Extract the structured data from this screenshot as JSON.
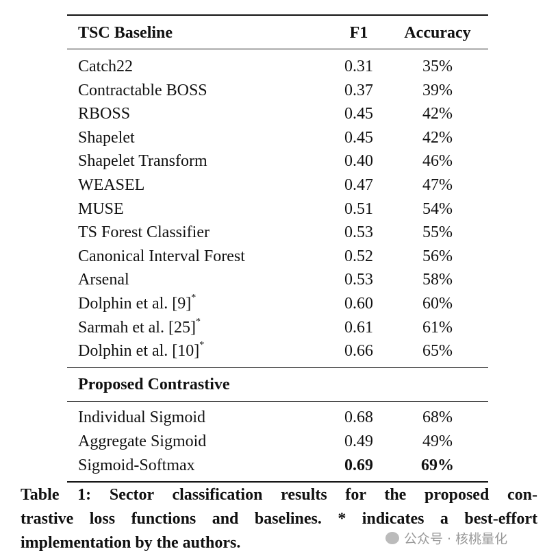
{
  "table": {
    "header": [
      "TSC Baseline",
      "F1",
      "Accuracy"
    ],
    "sections": [
      {
        "rows": [
          {
            "name": "Catch22",
            "f1": "0.31",
            "accuracy": "35%"
          },
          {
            "name": "Contractable BOSS",
            "f1": "0.37",
            "accuracy": "39%"
          },
          {
            "name": "RBOSS",
            "f1": "0.45",
            "accuracy": "42%"
          },
          {
            "name": "Shapelet",
            "f1": "0.45",
            "accuracy": "42%"
          },
          {
            "name": "Shapelet Transform",
            "f1": "0.40",
            "accuracy": "46%"
          },
          {
            "name": "WEASEL",
            "f1": "0.47",
            "accuracy": "47%"
          },
          {
            "name": "MUSE",
            "f1": "0.51",
            "accuracy": "54%"
          },
          {
            "name": "TS Forest Classifier",
            "f1": "0.53",
            "accuracy": "55%"
          },
          {
            "name": "Canonical Interval Forest",
            "f1": "0.52",
            "accuracy": "56%"
          },
          {
            "name": "Arsenal",
            "f1": "0.53",
            "accuracy": "58%"
          },
          {
            "name": "Dolphin et al. [9]",
            "note": "*",
            "f1": "0.60",
            "accuracy": "60%"
          },
          {
            "name": "Sarmah et al. [25]",
            "note": "*",
            "f1": "0.61",
            "accuracy": "61%"
          },
          {
            "name": "Dolphin et al. [10]",
            "note": "*",
            "f1": "0.66",
            "accuracy": "65%"
          }
        ]
      },
      {
        "title": "Proposed Contrastive",
        "rows": [
          {
            "name": "Individual Sigmoid",
            "f1": "0.68",
            "accuracy": "68%"
          },
          {
            "name": "Aggregate Sigmoid",
            "f1": "0.49",
            "accuracy": "49%"
          },
          {
            "name": "Sigmoid-Softmax",
            "f1": "0.69",
            "accuracy": "69%",
            "bold": true
          }
        ]
      }
    ]
  },
  "caption": {
    "lines": [
      "Table 1: Sector classification results for the proposed con-",
      "trastive loss functions and baselines. * indicates a best-effort",
      "implementation by the authors."
    ]
  },
  "watermark": "公众号 · 核桃量化"
}
